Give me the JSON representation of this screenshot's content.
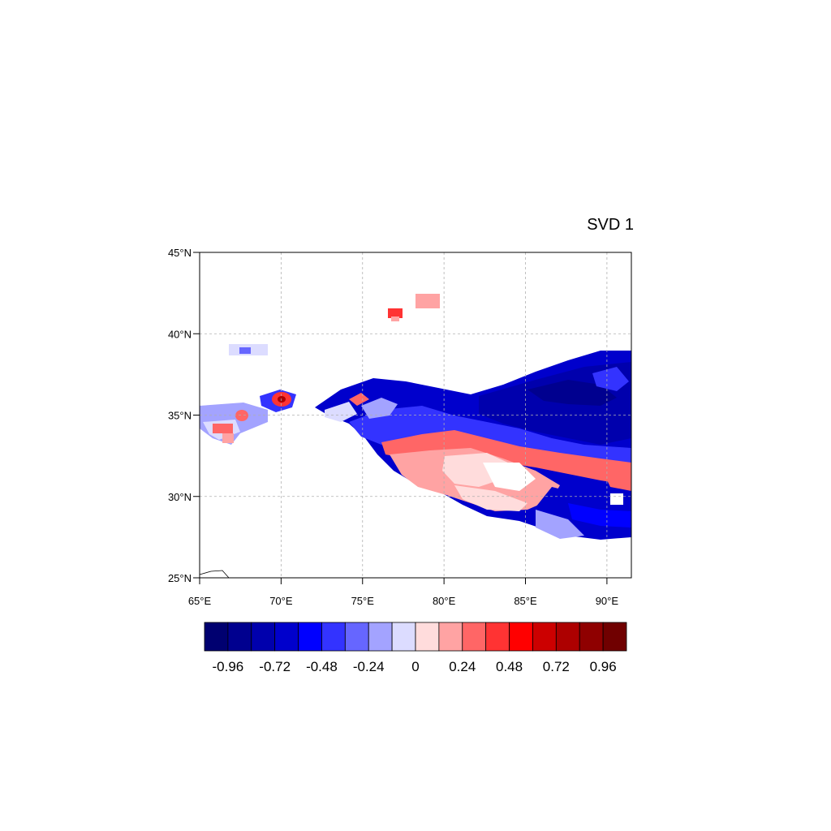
{
  "title": "SVD 1",
  "map": {
    "lon_range": [
      65,
      91.5
    ],
    "lat_range": [
      25,
      45
    ],
    "x_ticks": [
      {
        "value": 65,
        "label": "65°E"
      },
      {
        "value": 70,
        "label": "70°E"
      },
      {
        "value": 75,
        "label": "75°E"
      },
      {
        "value": 80,
        "label": "80°E"
      },
      {
        "value": 85,
        "label": "85°E"
      },
      {
        "value": 90,
        "label": "90°E"
      }
    ],
    "y_ticks": [
      {
        "value": 45,
        "label": "45°N"
      },
      {
        "value": 40,
        "label": "40°N"
      },
      {
        "value": 35,
        "label": "35°N"
      },
      {
        "value": 30,
        "label": "30°N"
      },
      {
        "value": 25,
        "label": "25°N"
      }
    ],
    "grid": "dashed"
  },
  "colorbar": {
    "colors": [
      "#000070",
      "#00008f",
      "#0000ad",
      "#0000cc",
      "#0000ff",
      "#3333ff",
      "#6666ff",
      "#a3a3ff",
      "#dcdcff",
      "#ffdcdc",
      "#ffa3a3",
      "#ff6666",
      "#ff3333",
      "#ff0000",
      "#cc0000",
      "#ad0000",
      "#8f0000",
      "#700000"
    ],
    "labels": [
      {
        "value": -0.96,
        "label": "-0.96"
      },
      {
        "value": -0.72,
        "label": "-0.72"
      },
      {
        "value": -0.48,
        "label": "-0.48"
      },
      {
        "value": -0.24,
        "label": "-0.24"
      },
      {
        "value": 0,
        "label": "0"
      },
      {
        "value": 0.24,
        "label": "0.24"
      },
      {
        "value": 0.48,
        "label": "0.48"
      },
      {
        "value": 0.72,
        "label": "0.72"
      },
      {
        "value": 0.96,
        "label": "0.96"
      }
    ]
  }
}
